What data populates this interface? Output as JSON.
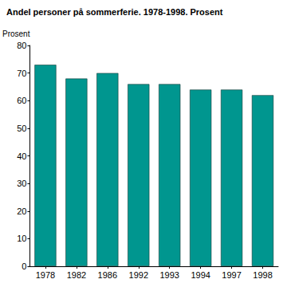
{
  "chart_data": {
    "type": "bar",
    "title": "Andel personer på sommerferie. 1978-1998. Prosent",
    "y_label": "Prosent",
    "categories": [
      "1978",
      "1982",
      "1986",
      "1992",
      "1993",
      "1994",
      "1997",
      "1998"
    ],
    "values": [
      73,
      68,
      70,
      66,
      66,
      64,
      64,
      62
    ],
    "color": "#00968f",
    "ylim": [
      0,
      80
    ],
    "yticks": [
      0,
      10,
      20,
      30,
      40,
      50,
      60,
      70,
      80
    ],
    "grid": false
  }
}
